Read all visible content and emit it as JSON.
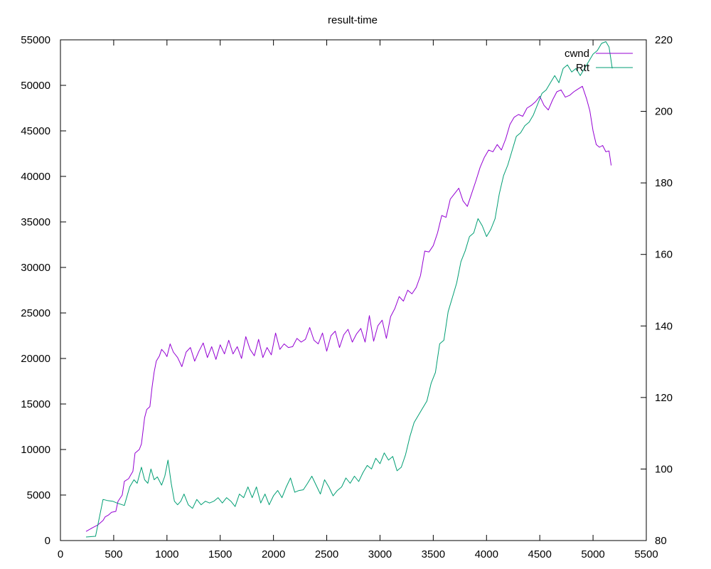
{
  "chart_data": {
    "type": "line",
    "title": "result-time",
    "xlim": [
      0,
      5500
    ],
    "ylim_left": [
      0,
      55000
    ],
    "ylim_right": [
      80,
      220
    ],
    "x_ticks": [
      "0",
      "500",
      "1000",
      "1500",
      "2000",
      "2500",
      "3000",
      "3500",
      "4000",
      "4500",
      "5000",
      "5500"
    ],
    "y_left_ticks": [
      "0",
      "5000",
      "10000",
      "15000",
      "20000",
      "25000",
      "30000",
      "35000",
      "40000",
      "45000",
      "50000",
      "55000"
    ],
    "y_right_ticks": [
      "80",
      "100",
      "120",
      "140",
      "160",
      "180",
      "200",
      "220"
    ],
    "legend_position": "top-right",
    "colors": {
      "cwnd": "#9400d3",
      "rtt": "#009e73"
    },
    "series": [
      {
        "name": "cwnd",
        "axis": "left",
        "color": "#9400d3",
        "points": [
          [
            240,
            1000
          ],
          [
            300,
            1400
          ],
          [
            350,
            1700
          ],
          [
            400,
            2200
          ],
          [
            420,
            2600
          ],
          [
            450,
            2800
          ],
          [
            480,
            3100
          ],
          [
            520,
            3200
          ],
          [
            540,
            4300
          ],
          [
            580,
            5000
          ],
          [
            600,
            6500
          ],
          [
            640,
            6800
          ],
          [
            660,
            7200
          ],
          [
            680,
            7600
          ],
          [
            700,
            9600
          ],
          [
            740,
            10000
          ],
          [
            760,
            10600
          ],
          [
            790,
            13500
          ],
          [
            810,
            14400
          ],
          [
            840,
            14700
          ],
          [
            860,
            16800
          ],
          [
            880,
            18500
          ],
          [
            900,
            19700
          ],
          [
            930,
            20300
          ],
          [
            950,
            21000
          ],
          [
            980,
            20600
          ],
          [
            1000,
            20200
          ],
          [
            1030,
            21600
          ],
          [
            1060,
            20700
          ],
          [
            1100,
            20100
          ],
          [
            1140,
            19100
          ],
          [
            1180,
            20700
          ],
          [
            1220,
            21200
          ],
          [
            1260,
            19700
          ],
          [
            1300,
            20800
          ],
          [
            1340,
            21700
          ],
          [
            1380,
            20100
          ],
          [
            1420,
            21300
          ],
          [
            1460,
            19900
          ],
          [
            1500,
            21500
          ],
          [
            1540,
            20500
          ],
          [
            1580,
            22000
          ],
          [
            1620,
            20500
          ],
          [
            1660,
            21300
          ],
          [
            1700,
            20000
          ],
          [
            1740,
            22400
          ],
          [
            1780,
            21000
          ],
          [
            1820,
            20300
          ],
          [
            1860,
            22100
          ],
          [
            1900,
            20100
          ],
          [
            1940,
            21200
          ],
          [
            1980,
            20400
          ],
          [
            2020,
            22800
          ],
          [
            2060,
            21000
          ],
          [
            2100,
            21600
          ],
          [
            2140,
            21200
          ],
          [
            2180,
            21300
          ],
          [
            2220,
            22200
          ],
          [
            2260,
            21800
          ],
          [
            2300,
            22100
          ],
          [
            2340,
            23400
          ],
          [
            2380,
            22000
          ],
          [
            2420,
            21600
          ],
          [
            2460,
            22800
          ],
          [
            2500,
            20800
          ],
          [
            2540,
            22500
          ],
          [
            2580,
            23000
          ],
          [
            2620,
            21200
          ],
          [
            2660,
            22600
          ],
          [
            2700,
            23200
          ],
          [
            2740,
            21800
          ],
          [
            2780,
            22700
          ],
          [
            2820,
            23300
          ],
          [
            2860,
            21800
          ],
          [
            2900,
            24700
          ],
          [
            2940,
            21900
          ],
          [
            2980,
            23600
          ],
          [
            3020,
            24200
          ],
          [
            3060,
            22200
          ],
          [
            3100,
            24600
          ],
          [
            3140,
            25500
          ],
          [
            3180,
            26800
          ],
          [
            3220,
            26300
          ],
          [
            3260,
            27500
          ],
          [
            3300,
            27100
          ],
          [
            3340,
            27800
          ],
          [
            3380,
            29100
          ],
          [
            3420,
            31800
          ],
          [
            3460,
            31700
          ],
          [
            3500,
            32400
          ],
          [
            3540,
            33800
          ],
          [
            3580,
            35700
          ],
          [
            3620,
            35500
          ],
          [
            3660,
            37500
          ],
          [
            3700,
            38100
          ],
          [
            3740,
            38700
          ],
          [
            3780,
            37300
          ],
          [
            3820,
            36700
          ],
          [
            3860,
            38100
          ],
          [
            3900,
            39500
          ],
          [
            3940,
            41000
          ],
          [
            3980,
            42100
          ],
          [
            4020,
            42900
          ],
          [
            4060,
            42700
          ],
          [
            4100,
            43500
          ],
          [
            4140,
            42900
          ],
          [
            4180,
            44100
          ],
          [
            4220,
            45700
          ],
          [
            4260,
            46500
          ],
          [
            4300,
            46800
          ],
          [
            4340,
            46600
          ],
          [
            4380,
            47500
          ],
          [
            4420,
            47800
          ],
          [
            4460,
            48200
          ],
          [
            4500,
            48800
          ],
          [
            4540,
            47800
          ],
          [
            4580,
            47300
          ],
          [
            4620,
            48400
          ],
          [
            4660,
            49300
          ],
          [
            4700,
            49500
          ],
          [
            4740,
            48700
          ],
          [
            4780,
            48900
          ],
          [
            4820,
            49300
          ],
          [
            4860,
            49600
          ],
          [
            4900,
            49900
          ],
          [
            4940,
            48500
          ],
          [
            4970,
            47200
          ],
          [
            5000,
            45000
          ],
          [
            5030,
            43500
          ],
          [
            5060,
            43200
          ],
          [
            5090,
            43400
          ],
          [
            5120,
            42700
          ],
          [
            5150,
            42800
          ],
          [
            5170,
            41200
          ]
        ]
      },
      {
        "name": "Rtt",
        "axis": "right",
        "color": "#009e73",
        "points": [
          [
            240,
            81
          ],
          [
            330,
            81.2
          ],
          [
            400,
            91.5
          ],
          [
            440,
            91.2
          ],
          [
            490,
            91
          ],
          [
            530,
            90.5
          ],
          [
            560,
            90.2
          ],
          [
            600,
            89.8
          ],
          [
            650,
            95
          ],
          [
            690,
            97
          ],
          [
            720,
            96
          ],
          [
            760,
            100.5
          ],
          [
            790,
            97
          ],
          [
            820,
            96
          ],
          [
            850,
            100
          ],
          [
            880,
            97
          ],
          [
            910,
            97.8
          ],
          [
            950,
            95.5
          ],
          [
            980,
            98
          ],
          [
            1010,
            102.5
          ],
          [
            1040,
            96
          ],
          [
            1070,
            91
          ],
          [
            1100,
            90
          ],
          [
            1130,
            91
          ],
          [
            1160,
            93
          ],
          [
            1200,
            90
          ],
          [
            1240,
            89
          ],
          [
            1280,
            91.5
          ],
          [
            1320,
            90
          ],
          [
            1360,
            91
          ],
          [
            1400,
            90.5
          ],
          [
            1440,
            91
          ],
          [
            1480,
            92
          ],
          [
            1520,
            90.5
          ],
          [
            1560,
            92
          ],
          [
            1600,
            91
          ],
          [
            1640,
            89.5
          ],
          [
            1680,
            93
          ],
          [
            1720,
            92
          ],
          [
            1760,
            95
          ],
          [
            1800,
            92
          ],
          [
            1840,
            95
          ],
          [
            1880,
            90.5
          ],
          [
            1920,
            93
          ],
          [
            1960,
            90
          ],
          [
            2000,
            92.5
          ],
          [
            2040,
            94
          ],
          [
            2080,
            92
          ],
          [
            2120,
            95
          ],
          [
            2160,
            97.5
          ],
          [
            2200,
            93.5
          ],
          [
            2240,
            94
          ],
          [
            2280,
            94.2
          ],
          [
            2320,
            96
          ],
          [
            2360,
            98
          ],
          [
            2400,
            95.5
          ],
          [
            2440,
            93
          ],
          [
            2480,
            97
          ],
          [
            2520,
            95
          ],
          [
            2560,
            92.5
          ],
          [
            2600,
            94
          ],
          [
            2640,
            95
          ],
          [
            2680,
            97.5
          ],
          [
            2720,
            96
          ],
          [
            2760,
            98
          ],
          [
            2800,
            96.5
          ],
          [
            2840,
            99
          ],
          [
            2880,
            101
          ],
          [
            2920,
            100
          ],
          [
            2960,
            103
          ],
          [
            3000,
            101.5
          ],
          [
            3040,
            104.5
          ],
          [
            3080,
            102.5
          ],
          [
            3120,
            103.5
          ],
          [
            3160,
            99.5
          ],
          [
            3200,
            100.5
          ],
          [
            3240,
            104
          ],
          [
            3280,
            109
          ],
          [
            3320,
            113
          ],
          [
            3360,
            115
          ],
          [
            3400,
            117
          ],
          [
            3440,
            119
          ],
          [
            3480,
            124
          ],
          [
            3520,
            127
          ],
          [
            3560,
            135
          ],
          [
            3600,
            136
          ],
          [
            3640,
            144
          ],
          [
            3680,
            148
          ],
          [
            3720,
            152
          ],
          [
            3760,
            158
          ],
          [
            3800,
            161
          ],
          [
            3840,
            165
          ],
          [
            3880,
            166
          ],
          [
            3920,
            170
          ],
          [
            3960,
            168
          ],
          [
            4000,
            165
          ],
          [
            4040,
            167
          ],
          [
            4080,
            170
          ],
          [
            4120,
            177
          ],
          [
            4160,
            182
          ],
          [
            4200,
            185
          ],
          [
            4240,
            189
          ],
          [
            4280,
            193
          ],
          [
            4320,
            194
          ],
          [
            4360,
            196
          ],
          [
            4400,
            197
          ],
          [
            4440,
            199
          ],
          [
            4480,
            202
          ],
          [
            4520,
            205
          ],
          [
            4560,
            206
          ],
          [
            4600,
            208
          ],
          [
            4640,
            210
          ],
          [
            4680,
            208
          ],
          [
            4720,
            212
          ],
          [
            4760,
            213
          ],
          [
            4800,
            211
          ],
          [
            4840,
            212
          ],
          [
            4880,
            210
          ],
          [
            4920,
            212
          ],
          [
            4960,
            214
          ],
          [
            5000,
            216
          ],
          [
            5040,
            217
          ],
          [
            5080,
            219
          ],
          [
            5120,
            219.5
          ],
          [
            5150,
            218
          ],
          [
            5180,
            212
          ]
        ]
      }
    ]
  }
}
